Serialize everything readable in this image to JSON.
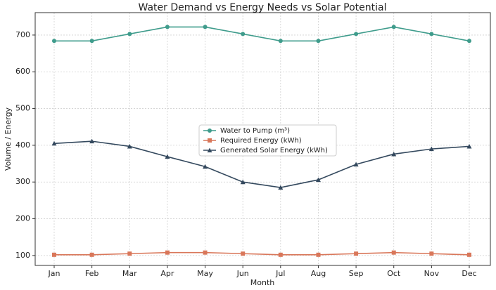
{
  "chart_data": {
    "type": "line",
    "title": "Water Demand vs Energy Needs vs Solar Potential",
    "x_label": "Month",
    "y_label": "Volume / Energy",
    "categories": [
      "Jan",
      "Feb",
      "Mar",
      "Apr",
      "May",
      "Jun",
      "Jul",
      "Aug",
      "Sep",
      "Oct",
      "Nov",
      "Dec"
    ],
    "series": [
      {
        "name": "Water to Pump (m³)",
        "color": "#3f9c8c",
        "marker": "circle",
        "values": [
          684,
          684,
          703,
          722,
          722,
          703,
          684,
          684,
          703,
          722,
          703,
          684
        ]
      },
      {
        "name": "Required Energy (kWh)",
        "color": "#d9775a",
        "marker": "square",
        "values": [
          102,
          102,
          105,
          108,
          108,
          105,
          102,
          102,
          105,
          108,
          105,
          102
        ]
      },
      {
        "name": "Generated Solar Energy (kWh)",
        "color": "#34495e",
        "marker": "triangle",
        "values": [
          405,
          411,
          397,
          369,
          342,
          300,
          285,
          306,
          348,
          376,
          390,
          397
        ]
      }
    ],
    "ylim": [
      73,
      761
    ],
    "yticks": [
      100,
      200,
      300,
      400,
      500,
      600,
      700
    ],
    "grid": true,
    "legend": "center"
  }
}
